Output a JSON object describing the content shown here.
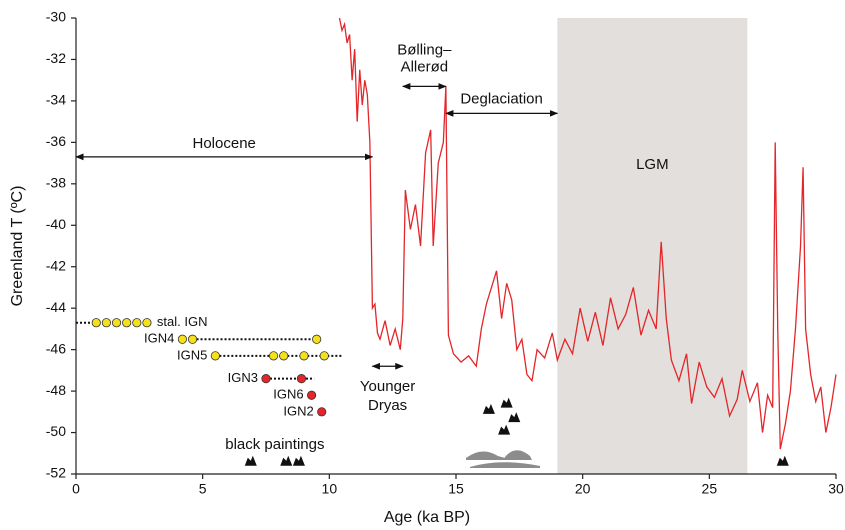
{
  "chart_data": {
    "type": "line",
    "x_label": "Age (ka BP)",
    "y_label": "Greenland T (ºC)",
    "xlim": [
      0,
      30
    ],
    "ylim": [
      -52,
      -30
    ],
    "xticks": [
      0,
      5,
      10,
      15,
      20,
      25,
      30
    ],
    "yticks": [
      -52,
      -50,
      -48,
      -46,
      -44,
      -42,
      -40,
      -38,
      -36,
      -34,
      -32,
      -30
    ],
    "series": [
      {
        "color": "#e3262a",
        "x": [
          10.4,
          10.5,
          10.6,
          10.7,
          10.8,
          10.9,
          11.0,
          11.1,
          11.2,
          11.3,
          11.4,
          11.5,
          11.6,
          11.7,
          11.8,
          11.9,
          12.0,
          12.2,
          12.4,
          12.6,
          12.8,
          12.9,
          13.0,
          13.2,
          13.4,
          13.6,
          13.8,
          14.0,
          14.1,
          14.3,
          14.5,
          14.6,
          14.7,
          14.9,
          15.2,
          15.5,
          15.8,
          16.0,
          16.2,
          16.4,
          16.6,
          16.8,
          17.0,
          17.2,
          17.4,
          17.6,
          17.8,
          18.0,
          18.2,
          18.5,
          18.8,
          19.0,
          19.3,
          19.6,
          19.9,
          20.2,
          20.5,
          20.8,
          21.1,
          21.4,
          21.7,
          22.0,
          22.3,
          22.6,
          22.9,
          23.1,
          23.3,
          23.5,
          23.8,
          24.1,
          24.3,
          24.6,
          24.9,
          25.2,
          25.5,
          25.8,
          26.1,
          26.3,
          26.6,
          26.9,
          27.1,
          27.3,
          27.5,
          27.6,
          27.7,
          27.8,
          28.0,
          28.2,
          28.4,
          28.6,
          28.7,
          28.8,
          29.0,
          29.2,
          29.4,
          29.6,
          29.8,
          30.0
        ],
        "values": [
          -30.0,
          -30.6,
          -30.3,
          -31.2,
          -30.8,
          -33.0,
          -31.5,
          -35.0,
          -32.5,
          -34.2,
          -33.0,
          -33.7,
          -36.0,
          -44.0,
          -43.8,
          -45.2,
          -45.5,
          -44.6,
          -45.8,
          -45.0,
          -46.0,
          -44.5,
          -38.3,
          -40.2,
          -39.0,
          -41.0,
          -36.5,
          -35.4,
          -41.0,
          -37.0,
          -36.0,
          -33.3,
          -45.3,
          -46.2,
          -46.6,
          -46.3,
          -46.8,
          -45.0,
          -43.8,
          -43.0,
          -42.2,
          -44.5,
          -42.8,
          -43.6,
          -46.0,
          -45.5,
          -47.2,
          -47.5,
          -46.0,
          -46.4,
          -45.2,
          -46.5,
          -45.5,
          -46.2,
          -44.0,
          -45.6,
          -44.2,
          -45.8,
          -43.5,
          -45.0,
          -44.3,
          -43.0,
          -45.3,
          -44.1,
          -45.0,
          -40.8,
          -44.5,
          -46.5,
          -47.5,
          -46.2,
          -48.6,
          -46.6,
          -47.8,
          -48.3,
          -47.4,
          -49.2,
          -48.4,
          -47.0,
          -48.5,
          -47.6,
          -50.0,
          -48.2,
          -48.8,
          -36.0,
          -45.0,
          -50.8,
          -49.6,
          -48.0,
          -45.0,
          -41.0,
          -37.2,
          -45.0,
          -47.2,
          -48.5,
          -47.8,
          -50.0,
          -48.8,
          -47.2
        ]
      }
    ],
    "shaded": [
      {
        "label": "LGM",
        "x": [
          19,
          26.5
        ],
        "color": "#e2dfdc"
      }
    ],
    "annotations": [
      {
        "label": [
          "Holocene"
        ],
        "x": [
          0,
          11.7
        ],
        "y": -36.7
      },
      {
        "label": [
          "Bølling–",
          "Allerød"
        ],
        "x": [
          12.9,
          14.6
        ],
        "y": -33.3
      },
      {
        "label": [
          "Deglaciation"
        ],
        "x": [
          14.6,
          19
        ],
        "y": -34.6
      },
      {
        "label": [
          "Younger",
          "Dryas"
        ],
        "x": [
          11.7,
          12.9
        ],
        "y": -46.8
      }
    ],
    "point_groups": [
      {
        "label": "stal. IGN",
        "color": "#f5e11b",
        "x": [
          0.8,
          1.2,
          1.6,
          2.0,
          2.4,
          2.8
        ],
        "y": -44.7,
        "range": [
          0,
          0.8
        ]
      },
      {
        "label": "IGN4",
        "color": "#f5e11b",
        "x": [
          4.2,
          4.6,
          9.5
        ],
        "y": -45.5,
        "range": [
          4.6,
          9.5
        ]
      },
      {
        "label": "IGN5",
        "color": "#f5e11b",
        "x": [
          5.5,
          7.8,
          8.2,
          9.0,
          9.8
        ],
        "y": -46.3,
        "range": [
          5.5,
          10.5
        ]
      },
      {
        "label": "IGN3",
        "color": "#e3262a",
        "x": [
          7.5,
          8.9
        ],
        "y": -47.4,
        "range": [
          7.5,
          9.4
        ]
      },
      {
        "label": "IGN6",
        "color": "#e3262a",
        "x": [
          9.3
        ],
        "y": -48.2,
        "range": [
          9.3,
          9.3
        ]
      },
      {
        "label": "IGN2",
        "color": "#e3262a",
        "x": [
          9.7
        ],
        "y": -49.0,
        "range": [
          9.7,
          9.7
        ]
      }
    ],
    "paintings": {
      "label": "black paintings",
      "x": [
        6.9,
        8.3,
        8.8,
        16.3,
        17.0,
        17.3,
        16.9,
        27.9
      ],
      "y": [
        -51.6,
        -51.6,
        -51.6,
        -49.1,
        -48.8,
        -49.5,
        -50.1,
        -51.6
      ]
    }
  }
}
